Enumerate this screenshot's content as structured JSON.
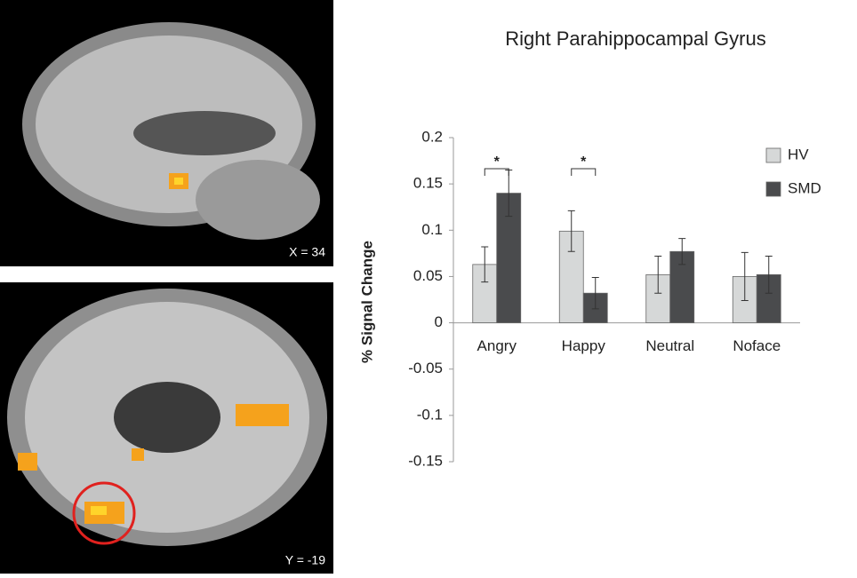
{
  "panels": [
    {
      "label": "X = 34"
    },
    {
      "label": "Y = -19"
    }
  ],
  "chart_data": {
    "type": "bar",
    "title": "Right Parahippocampal Gyrus",
    "y_label": "% Signal Change",
    "categories": [
      "Angry",
      "Happy",
      "Neutral",
      "Noface"
    ],
    "series": [
      {
        "name": "HV",
        "color": "#d6d8d8",
        "values": [
          0.063,
          0.099,
          0.052,
          0.05
        ],
        "errors": [
          0.019,
          0.022,
          0.02,
          0.026
        ]
      },
      {
        "name": "SMD",
        "color": "#4a4b4d",
        "values": [
          0.14,
          0.032,
          0.077,
          0.052
        ],
        "errors": [
          0.025,
          0.017,
          0.014,
          0.02
        ]
      }
    ],
    "significance": [
      "*",
      "*",
      null,
      null
    ],
    "ylim": [
      -0.15,
      0.2
    ],
    "yticks": [
      0.2,
      0.15,
      0.1,
      0.05,
      0,
      -0.05,
      -0.1,
      -0.15
    ],
    "grid": false,
    "legend": "right"
  }
}
